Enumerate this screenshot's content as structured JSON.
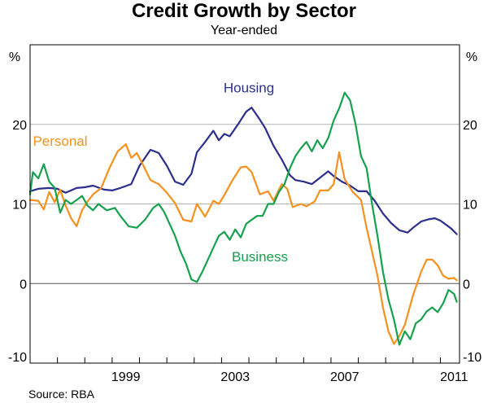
{
  "chart_data": {
    "type": "line",
    "title": "Credit Growth by Sector",
    "subtitle": "Year-ended",
    "source": "Source: RBA",
    "ylabel_left": "%",
    "ylabel_right": "%",
    "ylim": [
      -10,
      30
    ],
    "xlim": [
      1996.0,
      2011.7
    ],
    "grid": true,
    "y_ticks": [
      {
        "value": 20,
        "label": "20"
      },
      {
        "value": 10,
        "label": "10"
      },
      {
        "value": 0,
        "label": "0"
      },
      {
        "value": -10,
        "label": "-10"
      }
    ],
    "x_ticks": [
      {
        "value": 1999.5,
        "label": "1999"
      },
      {
        "value": 2003.5,
        "label": "2003"
      },
      {
        "value": 2007.5,
        "label": "2007"
      },
      {
        "value": 2011.5,
        "label": "2011"
      }
    ],
    "series": [
      {
        "name": "Housing",
        "color": "#2b2e8e",
        "label_pos": {
          "x": 2004.0,
          "y": 24.0
        },
        "points": [
          [
            1996.0,
            11.6
          ],
          [
            1996.3,
            11.9
          ],
          [
            1996.7,
            12.0
          ],
          [
            1997.0,
            11.9
          ],
          [
            1997.3,
            11.4
          ],
          [
            1997.7,
            12.0
          ],
          [
            1998.0,
            12.1
          ],
          [
            1998.3,
            12.3
          ],
          [
            1998.7,
            11.8
          ],
          [
            1999.0,
            11.7
          ],
          [
            1999.3,
            12.0
          ],
          [
            1999.7,
            12.5
          ],
          [
            2000.0,
            14.8
          ],
          [
            2000.4,
            16.8
          ],
          [
            2000.7,
            16.4
          ],
          [
            2001.0,
            14.8
          ],
          [
            2001.3,
            12.8
          ],
          [
            2001.6,
            12.4
          ],
          [
            2001.9,
            13.8
          ],
          [
            2002.1,
            16.5
          ],
          [
            2002.4,
            17.8
          ],
          [
            2002.7,
            19.2
          ],
          [
            2002.9,
            18.0
          ],
          [
            2003.1,
            18.8
          ],
          [
            2003.3,
            18.5
          ],
          [
            2003.6,
            20.0
          ],
          [
            2003.9,
            21.6
          ],
          [
            2004.1,
            22.1
          ],
          [
            2004.4,
            20.6
          ],
          [
            2004.6,
            19.5
          ],
          [
            2004.9,
            17.3
          ],
          [
            2005.2,
            15.6
          ],
          [
            2005.5,
            13.6
          ],
          [
            2005.7,
            13.0
          ],
          [
            2006.0,
            12.8
          ],
          [
            2006.3,
            12.5
          ],
          [
            2006.6,
            13.3
          ],
          [
            2006.9,
            14.1
          ],
          [
            2007.1,
            13.5
          ],
          [
            2007.4,
            12.8
          ],
          [
            2007.7,
            12.3
          ],
          [
            2008.0,
            11.6
          ],
          [
            2008.3,
            11.6
          ],
          [
            2008.6,
            10.4
          ],
          [
            2008.9,
            8.8
          ],
          [
            2009.2,
            7.6
          ],
          [
            2009.5,
            6.7
          ],
          [
            2009.8,
            6.4
          ],
          [
            2010.0,
            7.0
          ],
          [
            2010.3,
            7.8
          ],
          [
            2010.6,
            8.1
          ],
          [
            2010.8,
            8.2
          ],
          [
            2011.0,
            7.9
          ],
          [
            2011.2,
            7.4
          ],
          [
            2011.4,
            6.9
          ],
          [
            2011.6,
            6.2
          ]
        ]
      },
      {
        "name": "Personal",
        "color": "#f5911e",
        "label_pos": {
          "x": 1997.1,
          "y": 17.3
        },
        "points": [
          [
            1996.0,
            10.5
          ],
          [
            1996.3,
            10.4
          ],
          [
            1996.5,
            9.3
          ],
          [
            1996.7,
            11.5
          ],
          [
            1996.9,
            10.2
          ],
          [
            1997.1,
            11.8
          ],
          [
            1997.3,
            9.8
          ],
          [
            1997.5,
            8.2
          ],
          [
            1997.7,
            7.2
          ],
          [
            1997.9,
            9.2
          ],
          [
            1998.1,
            10.3
          ],
          [
            1998.3,
            11.2
          ],
          [
            1998.6,
            12.0
          ],
          [
            1998.9,
            14.5
          ],
          [
            1999.2,
            16.6
          ],
          [
            1999.5,
            17.5
          ],
          [
            1999.7,
            15.8
          ],
          [
            1999.9,
            16.4
          ],
          [
            2000.1,
            15.1
          ],
          [
            2000.4,
            13.0
          ],
          [
            2000.7,
            12.5
          ],
          [
            2001.0,
            11.4
          ],
          [
            2001.3,
            10.1
          ],
          [
            2001.6,
            8.0
          ],
          [
            2001.9,
            7.8
          ],
          [
            2002.1,
            10.0
          ],
          [
            2002.4,
            8.4
          ],
          [
            2002.7,
            10.4
          ],
          [
            2002.9,
            10.0
          ],
          [
            2003.1,
            11.1
          ],
          [
            2003.4,
            13.0
          ],
          [
            2003.7,
            14.6
          ],
          [
            2003.9,
            14.7
          ],
          [
            2004.1,
            14.0
          ],
          [
            2004.4,
            11.2
          ],
          [
            2004.7,
            11.6
          ],
          [
            2004.9,
            10.4
          ],
          [
            2005.2,
            12.5
          ],
          [
            2005.4,
            11.9
          ],
          [
            2005.6,
            9.6
          ],
          [
            2005.9,
            10.0
          ],
          [
            2006.1,
            9.7
          ],
          [
            2006.4,
            10.3
          ],
          [
            2006.6,
            11.7
          ],
          [
            2006.9,
            11.7
          ],
          [
            2007.1,
            12.5
          ],
          [
            2007.3,
            16.5
          ],
          [
            2007.5,
            13.1
          ],
          [
            2007.8,
            11.5
          ],
          [
            2008.1,
            10.5
          ],
          [
            2008.3,
            7.0
          ],
          [
            2008.5,
            4.0
          ],
          [
            2008.7,
            1.0
          ],
          [
            2008.9,
            -3.0
          ],
          [
            2009.1,
            -6.0
          ],
          [
            2009.3,
            -7.6
          ],
          [
            2009.5,
            -6.6
          ],
          [
            2009.7,
            -5.2
          ],
          [
            2010.0,
            -1.5
          ],
          [
            2010.3,
            1.5
          ],
          [
            2010.5,
            3.0
          ],
          [
            2010.7,
            3.0
          ],
          [
            2010.9,
            2.3
          ],
          [
            2011.1,
            1.0
          ],
          [
            2011.3,
            0.6
          ],
          [
            2011.5,
            0.7
          ],
          [
            2011.6,
            0.4
          ]
        ]
      },
      {
        "name": "Business",
        "color": "#16a14e",
        "label_pos": {
          "x": 2004.4,
          "y": 2.8
        },
        "points": [
          [
            1996.0,
            11.2
          ],
          [
            1996.1,
            14.0
          ],
          [
            1996.3,
            13.2
          ],
          [
            1996.5,
            15.0
          ],
          [
            1996.7,
            12.8
          ],
          [
            1996.9,
            12.0
          ],
          [
            1997.1,
            8.9
          ],
          [
            1997.3,
            10.5
          ],
          [
            1997.5,
            10.0
          ],
          [
            1997.7,
            10.5
          ],
          [
            1997.9,
            11.0
          ],
          [
            1998.1,
            9.8
          ],
          [
            1998.3,
            9.2
          ],
          [
            1998.5,
            10.0
          ],
          [
            1998.8,
            9.2
          ],
          [
            1999.1,
            9.5
          ],
          [
            1999.3,
            8.5
          ],
          [
            1999.6,
            7.2
          ],
          [
            1999.9,
            7.0
          ],
          [
            2000.2,
            8.0
          ],
          [
            2000.5,
            9.5
          ],
          [
            2000.7,
            10.0
          ],
          [
            2000.9,
            9.0
          ],
          [
            2001.1,
            7.5
          ],
          [
            2001.3,
            6.0
          ],
          [
            2001.5,
            4.0
          ],
          [
            2001.7,
            2.5
          ],
          [
            2001.9,
            0.5
          ],
          [
            2002.1,
            0.2
          ],
          [
            2002.3,
            1.5
          ],
          [
            2002.5,
            3.0
          ],
          [
            2002.7,
            4.5
          ],
          [
            2002.9,
            6.0
          ],
          [
            2003.1,
            6.5
          ],
          [
            2003.3,
            5.5
          ],
          [
            2003.5,
            6.8
          ],
          [
            2003.7,
            5.8
          ],
          [
            2003.9,
            7.5
          ],
          [
            2004.1,
            8.0
          ],
          [
            2004.3,
            8.5
          ],
          [
            2004.5,
            8.5
          ],
          [
            2004.7,
            10.0
          ],
          [
            2004.9,
            10.0
          ],
          [
            2005.1,
            11.5
          ],
          [
            2005.3,
            12.5
          ],
          [
            2005.5,
            14.5
          ],
          [
            2005.7,
            16.0
          ],
          [
            2005.9,
            17.0
          ],
          [
            2006.1,
            17.8
          ],
          [
            2006.3,
            16.6
          ],
          [
            2006.5,
            18.0
          ],
          [
            2006.7,
            17.0
          ],
          [
            2006.9,
            18.3
          ],
          [
            2007.1,
            20.5
          ],
          [
            2007.3,
            22.0
          ],
          [
            2007.5,
            24.0
          ],
          [
            2007.7,
            23.0
          ],
          [
            2007.9,
            20.0
          ],
          [
            2008.1,
            16.0
          ],
          [
            2008.3,
            14.5
          ],
          [
            2008.5,
            10.0
          ],
          [
            2008.7,
            6.0
          ],
          [
            2008.9,
            1.5
          ],
          [
            2009.1,
            -2.0
          ],
          [
            2009.3,
            -4.5
          ],
          [
            2009.5,
            -7.7
          ],
          [
            2009.7,
            -6.0
          ],
          [
            2009.9,
            -7.0
          ],
          [
            2010.1,
            -5.0
          ],
          [
            2010.3,
            -4.5
          ],
          [
            2010.5,
            -3.5
          ],
          [
            2010.7,
            -3.0
          ],
          [
            2010.9,
            -3.6
          ],
          [
            2011.1,
            -2.5
          ],
          [
            2011.3,
            -0.8
          ],
          [
            2011.5,
            -1.3
          ],
          [
            2011.6,
            -2.3
          ]
        ]
      }
    ]
  }
}
